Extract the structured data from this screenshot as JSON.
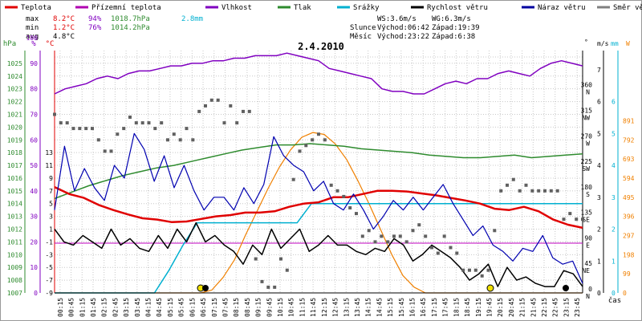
{
  "legend": [
    {
      "label": "Teplota",
      "color": "#e00000"
    },
    {
      "label": "Přízemní teplota",
      "color": "#b000b0"
    },
    {
      "label": "Vlhkost",
      "color": "#8000c0"
    },
    {
      "label": "Tlak",
      "color": "#2e8b2e"
    },
    {
      "label": "Srážky",
      "color": "#00b0d0"
    },
    {
      "label": "Rychlost větru",
      "color": "#000000"
    },
    {
      "label": "Náraz větru",
      "color": "#0000a0"
    },
    {
      "label": "Směr větru",
      "color": "#808080"
    }
  ],
  "stats": {
    "rows": [
      {
        "label": "max",
        "temp": "8.2°C",
        "hum": "94%",
        "press": "1018.7hPa",
        "rain": "2.8mm"
      },
      {
        "label": "min",
        "temp": "1.2°C",
        "hum": "76%",
        "press": "1014.2hPa",
        "rain": ""
      },
      {
        "label": "avg",
        "temp": "4.8°C",
        "hum": "",
        "press": "",
        "rain": ""
      }
    ]
  },
  "wind_info": {
    "ws": "WS:3.6m/s",
    "wg": "WG:6.3m/s"
  },
  "sun": {
    "label": "Slunce",
    "rise": "Východ:06:42",
    "set": "Západ:19:39"
  },
  "moon": {
    "label": "Měsíc",
    "rise": "Východ:23:22",
    "set": "Západ:6:38"
  },
  "colors": {
    "temp": "#e00000",
    "hum": "#8000c0",
    "press": "#2e8b2e",
    "rain": "#00b0d0",
    "wind": "#000000",
    "gust": "#0000b0",
    "dir": "#606060",
    "sun": "#f08000",
    "ground": "#c000c0",
    "grid": "#c8c8c8"
  },
  "chart_data": {
    "type": "line",
    "title": "2.4.2010",
    "x_axis_label": "čas",
    "x_ticks": [
      "00:15",
      "00:45",
      "01:15",
      "01:45",
      "02:15",
      "02:45",
      "03:15",
      "03:45",
      "04:15",
      "04:45",
      "05:15",
      "05:45",
      "06:15",
      "06:45",
      "07:15",
      "07:45",
      "08:15",
      "08:45",
      "09:15",
      "09:45",
      "10:15",
      "10:45",
      "11:15",
      "11:45",
      "12:15",
      "12:45",
      "13:15",
      "13:45",
      "14:15",
      "14:45",
      "15:15",
      "15:45",
      "16:15",
      "16:45",
      "17:15",
      "17:45",
      "18:15",
      "18:45",
      "19:15",
      "19:45",
      "20:15",
      "20:45",
      "21:15",
      "21:45",
      "22:15",
      "22:45",
      "23:15",
      "23:45"
    ],
    "axes": {
      "pressure": {
        "unit": "hPa",
        "min": 1007,
        "max": 1026,
        "ticks": [
          1007,
          1008,
          1009,
          1010,
          1011,
          1012,
          1013,
          1014,
          1015,
          1016,
          1017,
          1018,
          1019,
          1020,
          1021,
          1022,
          1023,
          1024,
          1025
        ]
      },
      "humidity": {
        "unit": "%",
        "ticks": [
          0,
          10,
          20,
          30,
          40,
          50,
          60,
          70,
          80,
          90,
          100
        ]
      },
      "temperature": {
        "unit": "°C",
        "ticks": [
          -9,
          -7,
          -5,
          -3,
          -1,
          1,
          3,
          5,
          7,
          9,
          11,
          13
        ]
      },
      "wind_direction": {
        "unit": "°",
        "ticks": [
          "0",
          "45",
          "90",
          "135",
          "180",
          "225",
          "270",
          "315",
          "360"
        ],
        "compass": [
          "N",
          "NE",
          "E",
          "SE",
          "S",
          "SW",
          "W",
          "NW",
          "N"
        ]
      },
      "wind_speed": {
        "unit": "m/s",
        "ticks": [
          0,
          1,
          2,
          3,
          4,
          5,
          6,
          7
        ]
      },
      "rain": {
        "unit": "mm",
        "ticks": [
          0,
          1,
          2,
          3,
          4,
          5,
          6
        ]
      },
      "solar": {
        "unit": "W",
        "ticks": [
          0,
          99,
          198,
          297,
          396,
          495,
          594,
          693,
          792,
          891
        ]
      }
    },
    "series": [
      {
        "name": "Teplota",
        "axis": "temperature",
        "values": [
          7.6,
          6.5,
          5.9,
          4.8,
          4.0,
          3.3,
          2.7,
          2.5,
          2.1,
          2.2,
          2.6,
          3.0,
          3.2,
          3.6,
          3.6,
          3.8,
          4.5,
          5.0,
          5.2,
          6.0,
          6.0,
          6.5,
          7.0,
          7.0,
          6.9,
          6.6,
          6.3,
          5.9,
          5.5,
          5.0,
          4.2,
          4.0,
          4.5,
          3.8,
          2.5,
          1.7,
          1.2
        ]
      },
      {
        "name": "Přízemní teplota",
        "axis": "temperature",
        "values": [
          -1.2,
          -1.2
        ]
      },
      {
        "name": "Vlhkost",
        "axis": "humidity",
        "values": [
          78,
          80,
          81,
          82,
          84,
          85,
          84,
          86,
          87,
          87,
          88,
          89,
          89,
          90,
          90,
          91,
          91,
          92,
          92,
          93,
          93,
          93,
          94,
          93,
          92,
          91,
          88,
          87,
          86,
          85,
          84,
          80,
          79,
          79,
          78,
          78,
          80,
          82,
          83,
          82,
          84,
          84,
          86,
          87,
          86,
          85,
          88,
          90,
          91,
          90,
          89
        ]
      },
      {
        "name": "Tlak",
        "axis": "pressure",
        "values": [
          1014.4,
          1014.9,
          1015.4,
          1015.8,
          1016.2,
          1016.5,
          1016.8,
          1017.0,
          1017.3,
          1017.6,
          1017.9,
          1018.2,
          1018.4,
          1018.6,
          1018.6,
          1018.7,
          1018.6,
          1018.5,
          1018.3,
          1018.2,
          1018.1,
          1018.0,
          1017.8,
          1017.7,
          1017.6,
          1017.6,
          1017.7,
          1017.8,
          1017.6,
          1017.7,
          1017.8,
          1017.9
        ]
      },
      {
        "name": "Srážky",
        "axis": "rain",
        "values": [
          0,
          0,
          0,
          0,
          0,
          0,
          0,
          0,
          0.7,
          1.5,
          2.2,
          2.2,
          2.2,
          2.2,
          2.2,
          2.2,
          2.2,
          2.2,
          2.8,
          2.8,
          2.8,
          2.8,
          2.8,
          2.8,
          2.8,
          2.8,
          2.8,
          2.8,
          2.8,
          2.8,
          2.8,
          2.8,
          2.8,
          2.8,
          2.8,
          2.8,
          2.8,
          2.8
        ]
      },
      {
        "name": "Rychlost větru",
        "axis": "wind_speed",
        "values": [
          2.0,
          1.6,
          1.5,
          1.8,
          1.6,
          1.4,
          2.0,
          1.5,
          1.7,
          1.4,
          1.3,
          1.8,
          1.4,
          2.0,
          1.6,
          2.2,
          1.6,
          1.8,
          1.5,
          1.3,
          0.9,
          1.5,
          1.2,
          2.0,
          1.4,
          1.7,
          2.0,
          1.3,
          1.5,
          1.8,
          1.5,
          1.5,
          1.3,
          1.2,
          1.4,
          1.3,
          1.7,
          1.5,
          1.0,
          1.2,
          1.5,
          1.3,
          1.1,
          0.8,
          0.4,
          0.6,
          0.9,
          0.2,
          0.8,
          0.4,
          0.5,
          0.3,
          0.2,
          0.2,
          0.7,
          0.6,
          0.2
        ]
      },
      {
        "name": "Náraz větru",
        "axis": "wind_speed",
        "values": [
          2.6,
          4.6,
          3.2,
          3.9,
          3.3,
          2.9,
          4.0,
          3.6,
          5.0,
          4.5,
          3.5,
          4.3,
          3.3,
          4.0,
          3.2,
          2.6,
          3.0,
          3.0,
          2.6,
          3.3,
          2.8,
          3.4,
          4.9,
          4.3,
          4.0,
          3.8,
          3.2,
          3.5,
          2.8,
          2.6,
          3.1,
          2.6,
          2.0,
          2.4,
          2.9,
          2.6,
          3.0,
          2.6,
          3.0,
          3.4,
          2.8,
          2.3,
          1.8,
          2.1,
          1.5,
          1.3,
          1.0,
          1.4,
          1.3,
          1.8,
          1.1,
          0.9,
          1.0,
          0.3
        ]
      },
      {
        "name": "Sluneční záření",
        "axis": "solar",
        "values": [
          0,
          0,
          0,
          0,
          0,
          0,
          0,
          0,
          0,
          0,
          0,
          0,
          0,
          0,
          15,
          80,
          170,
          300,
          420,
          540,
          650,
          740,
          805,
          830,
          820,
          770,
          690,
          580,
          460,
          330,
          200,
          90,
          30,
          0,
          0,
          0,
          0,
          0,
          0,
          0,
          0,
          0,
          0,
          0,
          0,
          0,
          0,
          0
        ]
      },
      {
        "name": "Směr větru",
        "axis": "wind_direction",
        "values": [
          315,
          300,
          300,
          290,
          290,
          290,
          290,
          270,
          250,
          250,
          280,
          290,
          310,
          300,
          300,
          300,
          290,
          300,
          270,
          280,
          270,
          290,
          270,
          320,
          330,
          340,
          340,
          300,
          330,
          300,
          320,
          320,
          60,
          20,
          10,
          10,
          60,
          40,
          200,
          250,
          260,
          270,
          280,
          270,
          190,
          180,
          170,
          150,
          140,
          100,
          110,
          90,
          100,
          90,
          100,
          100,
          90,
          110,
          120,
          100,
          80,
          70,
          100,
          80,
          70,
          40,
          40,
          40,
          30,
          40,
          110,
          180,
          190,
          200,
          180,
          190,
          180,
          180,
          180,
          180,
          180,
          130,
          140,
          130,
          130
        ]
      }
    ]
  }
}
